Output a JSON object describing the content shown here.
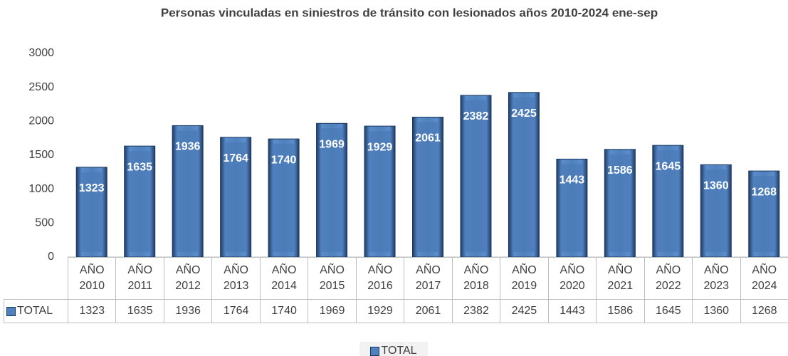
{
  "chart_data": {
    "type": "bar",
    "title": "Personas vinculadas en siniestros de tránsito  con  lesionados  años 2010-2024 ene-sep",
    "categories": [
      "AÑO 2010",
      "AÑO 2011",
      "AÑO 2012",
      "AÑO 2013",
      "AÑO 2014",
      "AÑO 2015",
      "AÑO 2016",
      "AÑO 2017",
      "AÑO 2018",
      "AÑO 2019",
      "AÑO 2020",
      "AÑO 2021",
      "AÑO 2022",
      "AÑO 2023",
      "AÑO 2024"
    ],
    "series": [
      {
        "name": "TOTAL",
        "color": "#4f81bd",
        "values": [
          1323,
          1635,
          1936,
          1764,
          1740,
          1969,
          1929,
          2061,
          2382,
          2425,
          1443,
          1586,
          1645,
          1360,
          1268
        ]
      }
    ],
    "ylim": [
      0,
      3000
    ],
    "yticks": [
      0,
      500,
      1000,
      1500,
      2000,
      2500,
      3000
    ],
    "grid": false,
    "legend": "bottom",
    "data_table": true
  }
}
